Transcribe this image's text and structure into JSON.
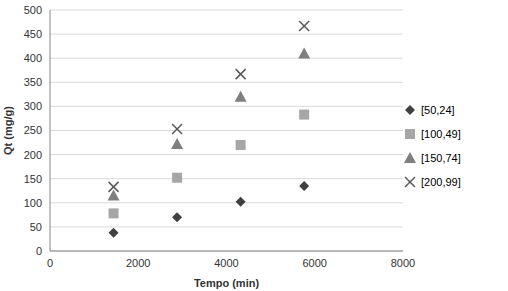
{
  "chart_data": {
    "type": "scatter",
    "x_label": "Tempo (min)",
    "y_label": "Qt (mg/g)",
    "x": [
      1440,
      2880,
      4320,
      5760
    ],
    "series": [
      {
        "name": "[50,24]",
        "color": "#404040",
        "marker": "diamond",
        "values": [
          38,
          70,
          102,
          135
        ]
      },
      {
        "name": "[100,49]",
        "color": "#a6a6a6",
        "marker": "square",
        "values": [
          78,
          152,
          220,
          283
        ]
      },
      {
        "name": "[150,74]",
        "color": "#7f7f7f",
        "marker": "triangle",
        "values": [
          115,
          222,
          320,
          410
        ]
      },
      {
        "name": "[200,99]",
        "color": "#595959",
        "marker": "x",
        "values": [
          133,
          253,
          367,
          467
        ]
      }
    ],
    "xlim": [
      0,
      8000
    ],
    "xticks": [
      0,
      2000,
      4000,
      6000,
      8000
    ],
    "ylim": [
      0,
      500
    ],
    "yticks": [
      0,
      50,
      100,
      150,
      200,
      250,
      300,
      350,
      400,
      450,
      500
    ],
    "grid": true,
    "legend": "right"
  }
}
